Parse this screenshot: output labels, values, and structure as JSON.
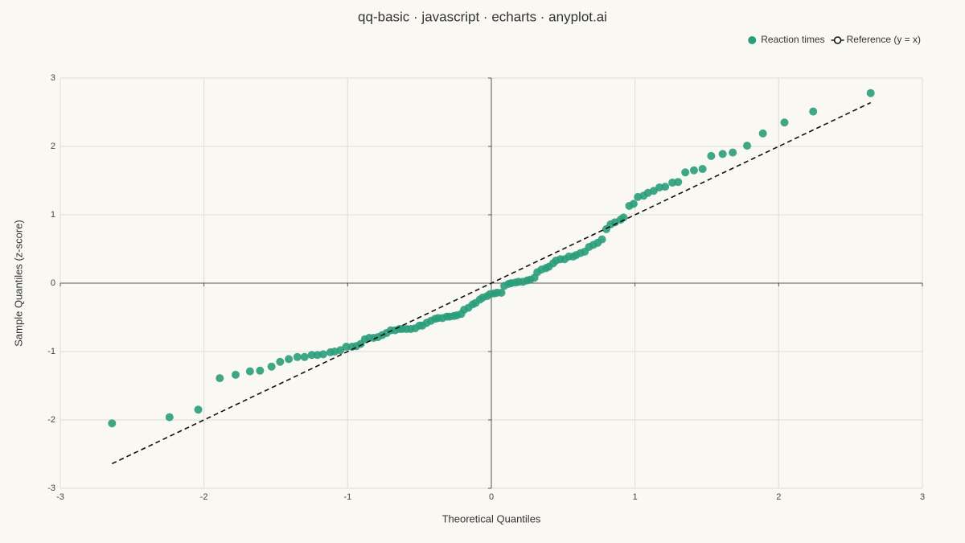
{
  "chart_data": {
    "type": "scatter",
    "title": "qq-basic · javascript · echarts · anyplot.ai",
    "x_label": "Theoretical Quantiles",
    "y_label": "Sample Quantiles (z-score)",
    "xlim": [
      -3,
      3
    ],
    "ylim": [
      -3,
      3
    ],
    "xticks": [
      -3,
      -2,
      -1,
      0,
      1,
      2,
      3
    ],
    "yticks": [
      -3,
      -2,
      -1,
      0,
      1,
      2,
      3
    ],
    "grid": true,
    "legend": "top-right",
    "series": [
      {
        "name": "Reaction times",
        "type": "scatter",
        "color": "#2a9d7a",
        "x": [
          -2.64,
          -2.24,
          -2.04,
          -1.89,
          -1.78,
          -1.68,
          -1.61,
          -1.53,
          -1.47,
          -1.41,
          -1.35,
          -1.3,
          -1.25,
          -1.21,
          -1.17,
          -1.12,
          -1.09,
          -1.05,
          -1.01,
          -0.97,
          -0.94,
          -0.91,
          -0.88,
          -0.85,
          -0.82,
          -0.79,
          -0.76,
          -0.73,
          -0.7,
          -0.67,
          -0.64,
          -0.62,
          -0.59,
          -0.56,
          -0.53,
          -0.5,
          -0.48,
          -0.45,
          -0.42,
          -0.39,
          -0.37,
          -0.34,
          -0.31,
          -0.29,
          -0.26,
          -0.24,
          -0.21,
          -0.19,
          -0.16,
          -0.13,
          -0.11,
          -0.08,
          -0.06,
          -0.03,
          -0.01,
          0.02,
          0.04,
          0.07,
          0.09,
          0.12,
          0.14,
          0.17,
          0.19,
          0.22,
          0.25,
          0.27,
          0.3,
          0.32,
          0.35,
          0.38,
          0.4,
          0.43,
          0.45,
          0.48,
          0.51,
          0.54,
          0.57,
          0.59,
          0.62,
          0.65,
          0.68,
          0.71,
          0.74,
          0.77,
          0.8,
          0.83,
          0.86,
          0.9,
          0.92,
          0.96,
          0.99,
          1.02,
          1.06,
          1.09,
          1.13,
          1.17,
          1.21,
          1.26,
          1.3,
          1.35,
          1.41,
          1.47,
          1.53,
          1.61,
          1.68,
          1.78,
          1.89,
          2.04,
          2.24,
          2.64
        ],
        "values": [
          -2.05,
          -1.96,
          -1.85,
          -1.39,
          -1.34,
          -1.29,
          -1.28,
          -1.22,
          -1.15,
          -1.11,
          -1.08,
          -1.08,
          -1.05,
          -1.05,
          -1.04,
          -1.01,
          -1.0,
          -0.98,
          -0.93,
          -0.93,
          -0.92,
          -0.89,
          -0.82,
          -0.8,
          -0.8,
          -0.79,
          -0.76,
          -0.73,
          -0.69,
          -0.69,
          -0.67,
          -0.67,
          -0.67,
          -0.67,
          -0.66,
          -0.62,
          -0.62,
          -0.58,
          -0.55,
          -0.52,
          -0.51,
          -0.51,
          -0.49,
          -0.49,
          -0.48,
          -0.47,
          -0.45,
          -0.39,
          -0.36,
          -0.31,
          -0.29,
          -0.24,
          -0.21,
          -0.19,
          -0.16,
          -0.15,
          -0.14,
          -0.14,
          -0.04,
          -0.01,
          0.0,
          0.01,
          0.02,
          0.02,
          0.04,
          0.05,
          0.08,
          0.16,
          0.2,
          0.22,
          0.24,
          0.29,
          0.33,
          0.35,
          0.35,
          0.39,
          0.39,
          0.41,
          0.44,
          0.46,
          0.53,
          0.56,
          0.59,
          0.64,
          0.79,
          0.86,
          0.89,
          0.93,
          0.96,
          1.13,
          1.16,
          1.26,
          1.28,
          1.32,
          1.35,
          1.4,
          1.41,
          1.47,
          1.48,
          1.62,
          1.65,
          1.67,
          1.86,
          1.89,
          1.91,
          2.01,
          2.19,
          2.35,
          2.51,
          2.78
        ]
      },
      {
        "name": "Reference (y = x)",
        "type": "line",
        "color": "#111111",
        "dashed": true,
        "x": [
          -2.64,
          2.64
        ],
        "values": [
          -2.64,
          2.64
        ]
      }
    ]
  }
}
